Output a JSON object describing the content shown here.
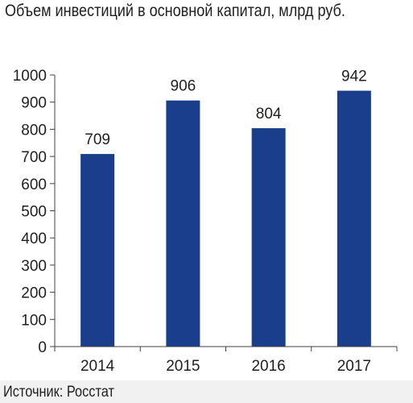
{
  "title": "Объем инвестиций в основной капитал, млрд руб.",
  "source": "Источник: Росстат",
  "colors": {
    "bar": "#1a3e8c",
    "axis": "#404040",
    "background": "#ffffff",
    "footer": "#f1f1f1"
  },
  "chart_data": {
    "type": "bar",
    "title": "Объем инвестиций в основной капитал, млрд руб.",
    "xlabel": "",
    "ylabel": "",
    "categories": [
      "2014",
      "2015",
      "2016",
      "2017"
    ],
    "series": [
      {
        "values": [
          709,
          906,
          804,
          942
        ]
      }
    ],
    "ylim": [
      0,
      1000
    ],
    "yticks": [
      0,
      100,
      200,
      300,
      400,
      500,
      600,
      700,
      800,
      900,
      1000
    ],
    "data_labels": [
      "709",
      "906",
      "804",
      "942"
    ],
    "grid": false,
    "legend": "none"
  }
}
